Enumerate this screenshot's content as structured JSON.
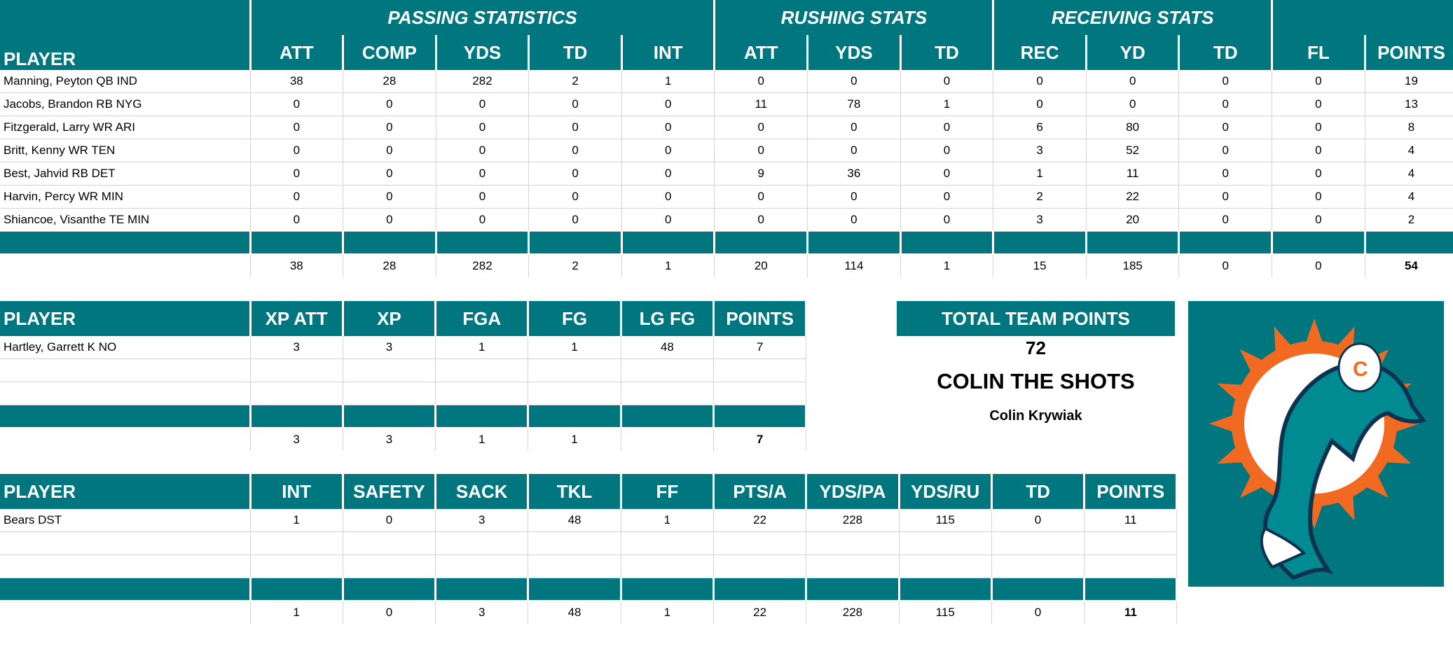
{
  "colors": {
    "teal": "#00777f",
    "orange": "#f26a21",
    "white": "#ffffff"
  },
  "offense": {
    "groups": [
      {
        "label": "",
        "span": 1
      },
      {
        "label": "PASSING STATISTICS",
        "span": 5
      },
      {
        "label": "RUSHING STATS",
        "span": 3
      },
      {
        "label": "RECEIVING STATS",
        "span": 3
      },
      {
        "label": "",
        "span": 2
      }
    ],
    "headers": [
      "PLAYER",
      "ATT",
      "COMP",
      "YDS",
      "TD",
      "INT",
      "ATT",
      "YDS",
      "TD",
      "REC",
      "YD",
      "TD",
      "FL",
      "POINTS"
    ],
    "rows": [
      [
        "Manning, Peyton QB IND",
        "38",
        "28",
        "282",
        "2",
        "1",
        "0",
        "0",
        "0",
        "0",
        "0",
        "0",
        "0",
        "19"
      ],
      [
        "Jacobs, Brandon RB NYG",
        "0",
        "0",
        "0",
        "0",
        "0",
        "11",
        "78",
        "1",
        "0",
        "0",
        "0",
        "0",
        "13"
      ],
      [
        "Fitzgerald, Larry WR ARI",
        "0",
        "0",
        "0",
        "0",
        "0",
        "0",
        "0",
        "0",
        "6",
        "80",
        "0",
        "0",
        "8"
      ],
      [
        "Britt, Kenny WR TEN",
        "0",
        "0",
        "0",
        "0",
        "0",
        "0",
        "0",
        "0",
        "3",
        "52",
        "0",
        "0",
        "4"
      ],
      [
        "Best, Jahvid RB DET",
        "0",
        "0",
        "0",
        "0",
        "0",
        "9",
        "36",
        "0",
        "1",
        "11",
        "0",
        "0",
        "4"
      ],
      [
        "Harvin, Percy WR MIN",
        "0",
        "0",
        "0",
        "0",
        "0",
        "0",
        "0",
        "0",
        "2",
        "22",
        "0",
        "0",
        "4"
      ],
      [
        "Shiancoe, Visanthe TE MIN",
        "0",
        "0",
        "0",
        "0",
        "0",
        "0",
        "0",
        "0",
        "3",
        "20",
        "0",
        "0",
        "2"
      ]
    ],
    "totals": [
      "",
      "38",
      "28",
      "282",
      "2",
      "1",
      "20",
      "114",
      "1",
      "15",
      "185",
      "0",
      "0",
      "54"
    ]
  },
  "kicker": {
    "headers": [
      "PLAYER",
      "XP ATT",
      "XP",
      "FGA",
      "FG",
      "LG FG",
      "POINTS"
    ],
    "rows": [
      [
        "Hartley, Garrett K NO",
        "3",
        "3",
        "1",
        "1",
        "48",
        "7"
      ],
      [
        "",
        "",
        "",
        "",
        "",
        "",
        ""
      ],
      [
        "",
        "",
        "",
        "",
        "",
        "",
        ""
      ]
    ],
    "totals": [
      "",
      "3",
      "3",
      "1",
      "1",
      "",
      "7"
    ]
  },
  "defense": {
    "headers": [
      "PLAYER",
      "INT",
      "SAFETY",
      "SACK",
      "TKL",
      "FF",
      "PTS/A",
      "YDS/PA",
      "YDS/RU",
      "TD",
      "POINTS"
    ],
    "rows": [
      [
        "Bears DST",
        "1",
        "0",
        "3",
        "48",
        "1",
        "22",
        "228",
        "115",
        "0",
        "11"
      ],
      [
        "",
        "",
        "",
        "",
        "",
        "",
        "",
        "",
        "",
        "",
        ""
      ],
      [
        "",
        "",
        "",
        "",
        "",
        "",
        "",
        "",
        "",
        "",
        ""
      ]
    ],
    "totals": [
      "",
      "1",
      "0",
      "3",
      "48",
      "1",
      "22",
      "228",
      "115",
      "0",
      "11"
    ]
  },
  "summary": {
    "label": "TOTAL TEAM POINTS",
    "value": "72",
    "team_name": "COLIN THE SHOTS",
    "owner": "Colin Krywiak"
  },
  "logo": {
    "icon": "miami-dolphins-logo-icon"
  }
}
